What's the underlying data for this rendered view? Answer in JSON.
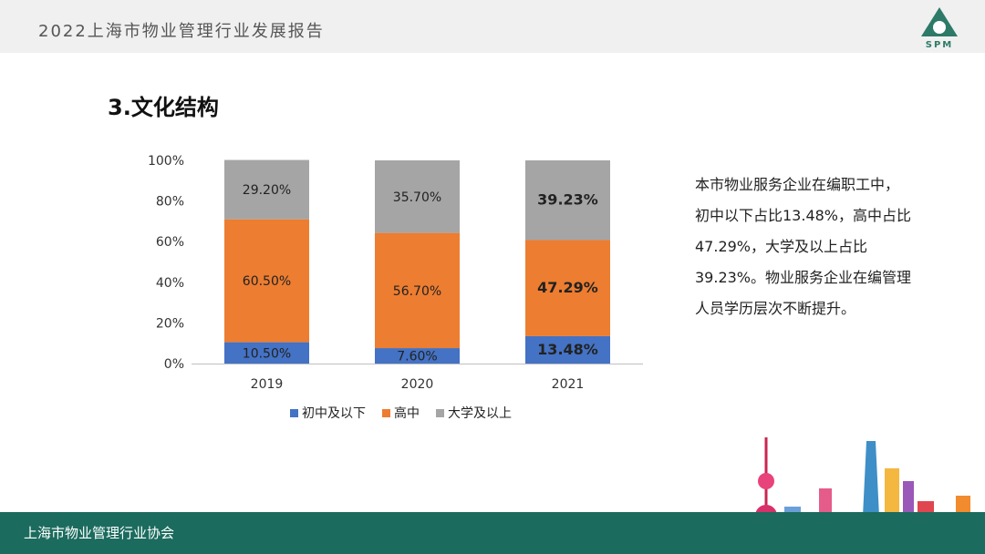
{
  "header": {
    "title": "2022上海市物业管理行业发展报告",
    "logo_text": "SPM"
  },
  "section_title": "3.文化结构",
  "description": "本市物业服务企业在编职工中，初中以下占比13.48%，高中占比47.29%，大学及以上占比39.23%。物业服务企业在编管理人员学历层次不断提升。",
  "footer": {
    "text": "上海市物业管理行业协会"
  },
  "colors": {
    "series_blue": "#4472c4",
    "series_orange": "#ed7d31",
    "series_gray": "#a5a5a5",
    "brand_green": "#1b6b5e"
  },
  "chart_data": {
    "type": "bar",
    "stacked": true,
    "categories": [
      "2019",
      "2020",
      "2021"
    ],
    "series": [
      {
        "name": "初中及以下",
        "values": [
          10.5,
          7.6,
          13.48
        ],
        "labels": [
          "10.50%",
          "7.60%",
          "13.48%"
        ],
        "color": "#4472c4"
      },
      {
        "name": "高中",
        "values": [
          60.5,
          56.7,
          47.29
        ],
        "labels": [
          "60.50%",
          "56.70%",
          "47.29%"
        ],
        "color": "#ed7d31"
      },
      {
        "name": "大学及以上",
        "values": [
          29.2,
          35.7,
          39.23
        ],
        "labels": [
          "29.20%",
          "35.70%",
          "39.23%"
        ],
        "color": "#a5a5a5"
      }
    ],
    "bold_category": "2021",
    "ylim": [
      0,
      100
    ],
    "yticks": [
      "0%",
      "20%",
      "40%",
      "60%",
      "80%",
      "100%"
    ],
    "legend_position": "bottom"
  }
}
